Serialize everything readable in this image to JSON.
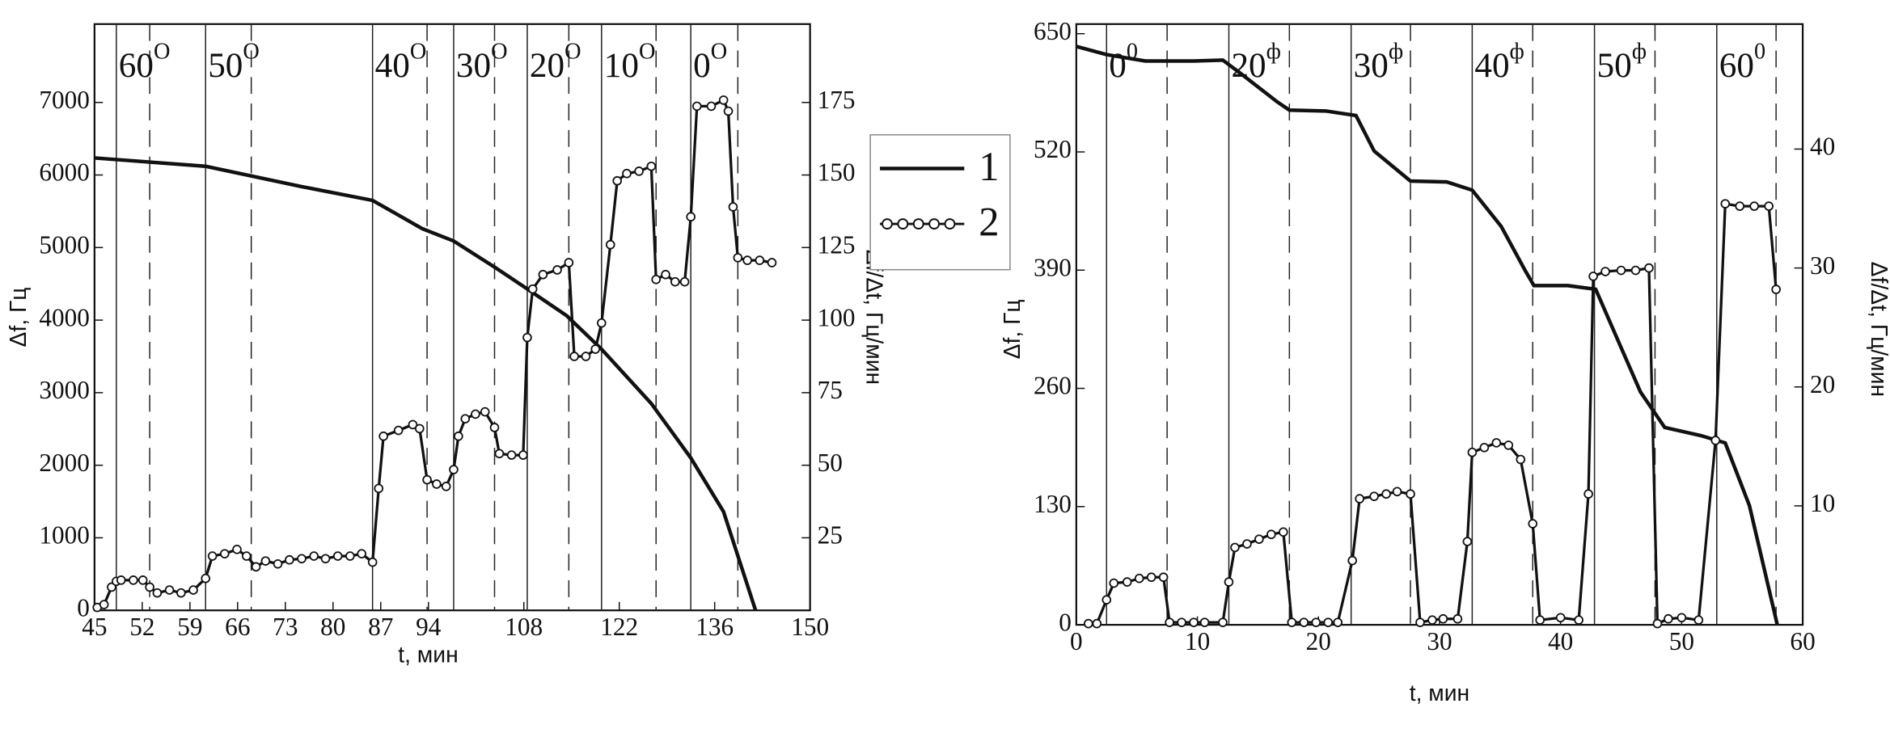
{
  "chart_data": [
    {
      "type": "line",
      "xlabel": "t, мин",
      "ylabel": "Δf, Гц",
      "y2label": "Δf/Δt, Гц/мин",
      "xlim": [
        45,
        150
      ],
      "xticks": [
        45,
        52,
        59,
        66,
        73,
        80,
        87,
        94,
        108,
        122,
        136,
        150
      ],
      "ylim": [
        0,
        8080
      ],
      "yticks": [
        0,
        1000,
        2000,
        3000,
        4000,
        5000,
        6000,
        7000
      ],
      "y2lim": [
        0,
        202
      ],
      "y2ticks": [
        25,
        50,
        75,
        100,
        125,
        150,
        175
      ],
      "legend": "right-outside",
      "vlines": [
        {
          "x": 48.2,
          "style": "solid"
        },
        {
          "x": 61.3,
          "style": "solid"
        },
        {
          "x": 85.8,
          "style": "solid"
        },
        {
          "x": 97.7,
          "style": "solid"
        },
        {
          "x": 108.5,
          "style": "solid"
        },
        {
          "x": 119.4,
          "style": "solid"
        },
        {
          "x": 132.5,
          "style": "solid"
        },
        {
          "x": 53.1,
          "style": "dashed"
        },
        {
          "x": 68.0,
          "style": "dashed"
        },
        {
          "x": 93.8,
          "style": "dashed"
        },
        {
          "x": 103.7,
          "style": "dashed"
        },
        {
          "x": 114.6,
          "style": "dashed"
        },
        {
          "x": 127.4,
          "style": "dashed"
        },
        {
          "x": 139.4,
          "style": "dashed"
        }
      ],
      "zone_labels": [
        {
          "text": "60",
          "sup": "O"
        },
        {
          "text": "50",
          "sup": "O"
        },
        {
          "text": "40",
          "sup": "O"
        },
        {
          "text": "30",
          "sup": "O"
        },
        {
          "text": "20",
          "sup": "O"
        },
        {
          "text": "10",
          "sup": "O"
        },
        {
          "text": "0",
          "sup": "O"
        }
      ],
      "series": [
        {
          "name": "1",
          "color": "#111111",
          "marker": "none",
          "axis": "y",
          "x": [
            45,
            61.3,
            75.4,
            85.8,
            93.1,
            97.7,
            103.7,
            108.5,
            114.3,
            119.4,
            126.7,
            132.5,
            137.3,
            142
          ],
          "values": [
            6235,
            6120,
            5840,
            5650,
            5260,
            5090,
            4730,
            4430,
            4060,
            3600,
            2850,
            2100,
            1360,
            0
          ]
        },
        {
          "name": "2",
          "color": "#111111",
          "marker": "circle",
          "axis": "y2",
          "x": [
            45.4,
            46.4,
            47.5,
            48.2,
            48.9,
            50.7,
            52.1,
            53.1,
            54.2,
            56.0,
            57.7,
            59.5,
            61.3,
            62.3,
            64.1,
            65.9,
            67.3,
            68.7,
            70.1,
            71.9,
            73.6,
            75.4,
            77.2,
            78.9,
            80.7,
            82.5,
            84.2,
            85.8,
            86.7,
            87.4,
            89.6,
            91.7,
            92.7,
            93.8,
            95.2,
            96.6,
            97.7,
            98.4,
            99.4,
            100.9,
            102.3,
            103.7,
            104.4,
            106.2,
            107.9,
            108.5,
            109.3,
            110.8,
            112.9,
            114.6,
            115.4,
            117.1,
            118.5,
            119.4,
            120.7,
            121.7,
            123.1,
            124.9,
            126.7,
            127.4,
            128.8,
            130.2,
            131.6,
            132.5,
            133.4,
            135.5,
            137.3,
            138.0,
            138.7,
            139.4,
            140.8,
            142.6,
            144.4
          ],
          "values": [
            1,
            2,
            8,
            10,
            10.4,
            10.4,
            10.4,
            8,
            6,
            7,
            6,
            7,
            11,
            18.7,
            19.5,
            21,
            18.7,
            15,
            17,
            16,
            17.4,
            17.8,
            18.7,
            17.8,
            18.7,
            18.7,
            19.5,
            16.6,
            42,
            60,
            62,
            64,
            62.6,
            45,
            43.5,
            42.7,
            48.5,
            60,
            66,
            67.6,
            68.4,
            63,
            54,
            53.5,
            53.5,
            94,
            110.7,
            115.7,
            117.3,
            119.8,
            87.5,
            87.5,
            90,
            99,
            126,
            148,
            150.5,
            151.3,
            153,
            114,
            115.7,
            113.2,
            113.2,
            135.6,
            173.7,
            173.7,
            175.8,
            172,
            139,
            121.5,
            120.6,
            120.6,
            119.8
          ]
        }
      ]
    },
    {
      "type": "line",
      "xlabel": "t, мин",
      "ylabel": "Δf, Гц",
      "y2label": "Δf/Δt, Гц/мин",
      "xlim": [
        0,
        60
      ],
      "xticks": [
        0,
        10,
        20,
        30,
        40,
        50,
        60
      ],
      "ylim": [
        0,
        650
      ],
      "yticks": [
        0,
        130,
        260,
        390,
        520,
        650
      ],
      "y2lim": [
        0,
        49.7
      ],
      "y2ticks": [
        10,
        20,
        30,
        40
      ],
      "vlines": [
        {
          "x": 2.5,
          "style": "solid"
        },
        {
          "x": 12.6,
          "style": "solid"
        },
        {
          "x": 22.7,
          "style": "solid"
        },
        {
          "x": 32.7,
          "style": "solid"
        },
        {
          "x": 42.8,
          "style": "solid"
        },
        {
          "x": 52.9,
          "style": "solid"
        },
        {
          "x": 7.5,
          "style": "dashed"
        },
        {
          "x": 17.6,
          "style": "dashed"
        },
        {
          "x": 27.6,
          "style": "dashed"
        },
        {
          "x": 37.7,
          "style": "dashed"
        },
        {
          "x": 47.8,
          "style": "dashed"
        },
        {
          "x": 57.8,
          "style": "dashed"
        }
      ],
      "zone_labels": [
        {
          "text": "0",
          "sup": "0"
        },
        {
          "text": "20",
          "sup": "ф"
        },
        {
          "text": "30",
          "sup": "ф"
        },
        {
          "text": "40",
          "sup": "ф"
        },
        {
          "text": "50",
          "sup": "ф"
        },
        {
          "text": "60",
          "sup": "0"
        }
      ],
      "series": [
        {
          "color": "#111111",
          "marker": "none",
          "axis": "y",
          "x": [
            0,
            2.5,
            5.7,
            9.7,
            12.1,
            13.6,
            16.6,
            17.6,
            20.6,
            23.1,
            24.6,
            27.6,
            30.6,
            32.7,
            35.1,
            37.1,
            37.8,
            40.6,
            42.9,
            44.6,
            46.6,
            48.6,
            51.6,
            53.6,
            55.6,
            57.9
          ],
          "values": [
            636,
            627,
            620,
            620,
            621,
            606,
            575,
            566,
            565,
            560,
            521,
            488,
            487,
            478,
            438,
            389,
            373,
            373,
            369,
            317,
            256,
            217,
            208,
            200,
            131,
            0
          ]
        },
        {
          "color": "#111111",
          "marker": "circle",
          "axis": "y2",
          "x": [
            1.0,
            1.7,
            2.5,
            3.1,
            4.2,
            5.2,
            6.2,
            7.2,
            7.7,
            8.7,
            9.7,
            10.6,
            12.1,
            12.6,
            13.1,
            14.1,
            15.1,
            16.1,
            17.1,
            17.8,
            18.8,
            19.8,
            20.8,
            21.6,
            22.8,
            23.4,
            24.6,
            25.6,
            26.5,
            27.6,
            28.4,
            29.4,
            30.3,
            31.5,
            32.3,
            32.7,
            33.7,
            34.7,
            35.7,
            36.7,
            37.7,
            38.3,
            40.0,
            41.5,
            42.3,
            42.7,
            43.7,
            45.0,
            46.2,
            47.3,
            48.0,
            48.9,
            50.0,
            51.4,
            52.8,
            53.6,
            54.8,
            56.0,
            57.2,
            57.8
          ],
          "values": [
            0.1,
            0.1,
            2.1,
            3.5,
            3.6,
            3.9,
            4.0,
            4.0,
            0.2,
            0.2,
            0.2,
            0.2,
            0.2,
            3.6,
            6.5,
            6.8,
            7.2,
            7.6,
            7.8,
            0.2,
            0.2,
            0.2,
            0.2,
            0.2,
            5.4,
            10.6,
            10.8,
            11.0,
            11.2,
            11.0,
            0.2,
            0.4,
            0.5,
            0.5,
            7.0,
            14.5,
            14.9,
            15.3,
            15.1,
            13.9,
            8.5,
            0.4,
            0.6,
            0.4,
            11.0,
            29.3,
            29.7,
            29.8,
            29.8,
            30.0,
            0.1,
            0.5,
            0.6,
            0.4,
            15.5,
            35.4,
            35.2,
            35.2,
            35.2,
            28.2
          ]
        }
      ]
    }
  ]
}
